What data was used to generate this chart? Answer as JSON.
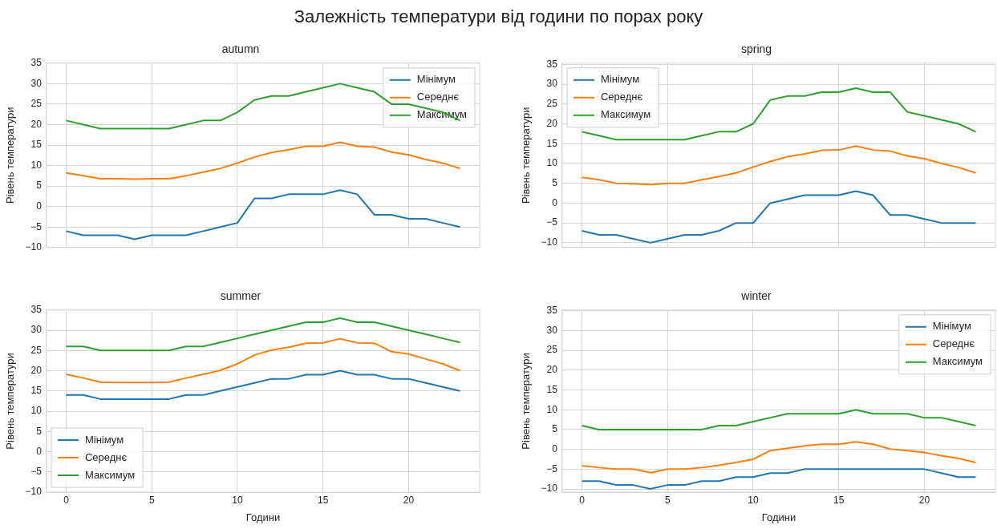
{
  "chart_data": [
    {
      "type": "line",
      "title": "autumn",
      "ylabel": "Рівень температури",
      "annotations": [
        "Залежність температури від години по порах року"
      ],
      "x": [
        0,
        1,
        2,
        3,
        4,
        5,
        6,
        7,
        8,
        9,
        10,
        11,
        12,
        13,
        14,
        15,
        16,
        17,
        18,
        19,
        20,
        21,
        22,
        23
      ],
      "series": [
        {
          "name": "Мінімум",
          "color": "#1f77b4",
          "values": [
            -6,
            -7,
            -7,
            -7,
            -8,
            -7,
            -7,
            -7,
            -6,
            -5,
            -4,
            2,
            2,
            3,
            3,
            3,
            4,
            3,
            -2,
            -2,
            -3,
            -3,
            -4,
            -5
          ]
        },
        {
          "name": "Середнє",
          "color": "#ff7f0e",
          "values": [
            8.2,
            7.5,
            6.8,
            6.8,
            6.7,
            6.8,
            6.8,
            7.5,
            8.4,
            9.3,
            10.6,
            12.1,
            13.2,
            13.9,
            14.7,
            14.7,
            15.7,
            14.7,
            14.5,
            13.3,
            12.6,
            11.5,
            10.6,
            9.3
          ]
        },
        {
          "name": "Максимум",
          "color": "#2ca02c",
          "values": [
            21,
            20,
            19,
            19,
            19,
            19,
            19,
            20,
            21,
            21,
            23,
            26,
            27,
            27,
            28,
            29,
            30,
            29,
            28,
            25,
            25,
            24,
            23,
            21
          ]
        }
      ],
      "xlim": [
        -1.15,
        24.15
      ],
      "ylim": [
        -10,
        35
      ],
      "xticks": [
        0,
        5,
        10,
        15,
        20
      ],
      "yticks": [
        -10,
        -5,
        0,
        5,
        10,
        15,
        20,
        25,
        30,
        35
      ],
      "grid": true,
      "legend": "top right",
      "tick_labels": "y"
    },
    {
      "type": "line",
      "title": "spring",
      "ylabel": "Рівень температури",
      "x": [
        0,
        1,
        2,
        3,
        4,
        5,
        6,
        7,
        8,
        9,
        10,
        11,
        12,
        13,
        14,
        15,
        16,
        17,
        18,
        19,
        20,
        21,
        22,
        23
      ],
      "series": [
        {
          "name": "Мінімум",
          "color": "#1f77b4",
          "values": [
            -7,
            -8,
            -8,
            -9,
            -10,
            -9,
            -8,
            -8,
            -7,
            -5,
            -5,
            0,
            1,
            2,
            2,
            2,
            3,
            2,
            -3,
            -3,
            -4,
            -5,
            -5,
            -5
          ]
        },
        {
          "name": "Середнє",
          "color": "#ff7f0e",
          "values": [
            6.5,
            5.9,
            5.0,
            4.9,
            4.7,
            5.0,
            5.0,
            5.9,
            6.7,
            7.6,
            9.1,
            10.5,
            11.7,
            12.4,
            13.3,
            13.4,
            14.4,
            13.4,
            13.1,
            11.9,
            11.2,
            10.0,
            9.0,
            7.6
          ]
        },
        {
          "name": "Максимум",
          "color": "#2ca02c",
          "values": [
            18,
            17,
            16,
            16,
            16,
            16,
            16,
            17,
            18,
            18,
            20,
            26,
            27,
            27,
            28,
            28,
            29,
            28,
            28,
            23,
            22,
            21,
            20,
            18
          ]
        }
      ],
      "xlim": [
        -1.15,
        24.15
      ],
      "ylim": [
        -11.2,
        35.3
      ],
      "xticks": [
        0,
        5,
        10,
        15,
        20
      ],
      "yticks": [
        -10,
        -5,
        0,
        5,
        10,
        15,
        20,
        25,
        30,
        35
      ],
      "grid": true,
      "legend": "top left",
      "tick_labels": "y"
    },
    {
      "type": "line",
      "title": "summer",
      "xlabel": "Години",
      "ylabel": "Рівень температури",
      "x": [
        0,
        1,
        2,
        3,
        4,
        5,
        6,
        7,
        8,
        9,
        10,
        11,
        12,
        13,
        14,
        15,
        16,
        17,
        18,
        19,
        20,
        21,
        22,
        23
      ],
      "series": [
        {
          "name": "Мінімум",
          "color": "#1f77b4",
          "values": [
            14,
            14,
            13,
            13,
            13,
            13,
            13,
            14,
            14,
            15,
            16,
            17,
            18,
            18,
            19,
            19,
            20,
            19,
            19,
            18,
            18,
            17,
            16,
            15
          ]
        },
        {
          "name": "Середнє",
          "color": "#ff7f0e",
          "values": [
            19.1,
            18.2,
            17.2,
            17.1,
            17.1,
            17.1,
            17.2,
            18.2,
            19.1,
            20.1,
            21.7,
            23.9,
            25.1,
            25.8,
            26.8,
            26.9,
            27.9,
            26.9,
            26.8,
            24.7,
            24.1,
            22.9,
            21.7,
            20.0
          ]
        },
        {
          "name": "Максимум",
          "color": "#2ca02c",
          "values": [
            26,
            26,
            25,
            25,
            25,
            25,
            25,
            26,
            26,
            27,
            28,
            29,
            30,
            31,
            32,
            32,
            33,
            32,
            32,
            31,
            30,
            29,
            28,
            27
          ]
        }
      ],
      "xlim": [
        -1.15,
        24.15
      ],
      "ylim": [
        -10,
        35
      ],
      "xticks": [
        0,
        5,
        10,
        15,
        20
      ],
      "yticks": [
        -10,
        -5,
        0,
        5,
        10,
        15,
        20,
        25,
        30,
        35
      ],
      "grid": true,
      "legend": "bottom left"
    },
    {
      "type": "line",
      "title": "winter",
      "xlabel": "Години",
      "ylabel": "Рівень температури",
      "x": [
        0,
        1,
        2,
        3,
        4,
        5,
        6,
        7,
        8,
        9,
        10,
        11,
        12,
        13,
        14,
        15,
        16,
        17,
        18,
        19,
        20,
        21,
        22,
        23
      ],
      "series": [
        {
          "name": "Мінімум",
          "color": "#1f77b4",
          "values": [
            -8,
            -8,
            -9,
            -9,
            -10,
            -9,
            -9,
            -8,
            -8,
            -7,
            -7,
            -6,
            -6,
            -5,
            -5,
            -5,
            -5,
            -5,
            -5,
            -5,
            -5,
            -6,
            -7,
            -7
          ]
        },
        {
          "name": "Середнє",
          "color": "#ff7f0e",
          "values": [
            -4.1,
            -4.6,
            -5.0,
            -5.0,
            -5.9,
            -5.0,
            -5.0,
            -4.6,
            -4.0,
            -3.3,
            -2.5,
            -0.3,
            0.3,
            0.9,
            1.3,
            1.3,
            1.9,
            1.3,
            0.1,
            -0.3,
            -0.8,
            -1.6,
            -2.3,
            -3.3
          ]
        },
        {
          "name": "Максимум",
          "color": "#2ca02c",
          "values": [
            6,
            5,
            5,
            5,
            5,
            5,
            5,
            5,
            6,
            6,
            7,
            8,
            9,
            9,
            9,
            9,
            10,
            9,
            9,
            9,
            8,
            8,
            7,
            6
          ]
        }
      ],
      "xlim": [
        -1.15,
        24.15
      ],
      "ylim": [
        -10.8,
        35.2
      ],
      "xticks": [
        0,
        5,
        10,
        15,
        20
      ],
      "yticks": [
        -10,
        -5,
        0,
        5,
        10,
        15,
        20,
        25,
        30,
        35
      ],
      "grid": true,
      "legend": "top right"
    }
  ]
}
